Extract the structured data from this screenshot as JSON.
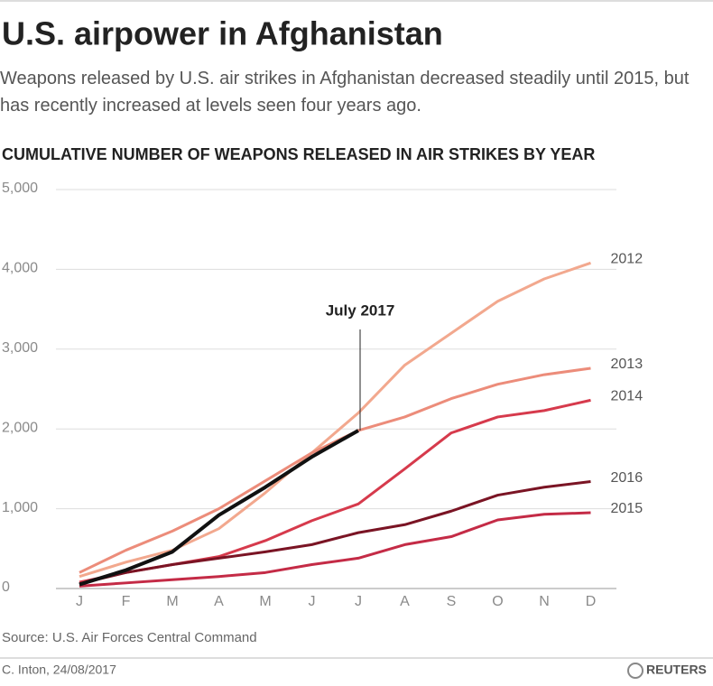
{
  "chart_data": {
    "type": "line",
    "title": "U.S. airpower in Afghanistan",
    "subtitle": "Weapons released by U.S. air strikes in Afghanistan decreased steadily until 2015, but has recently increased at levels seen four years ago.",
    "chart_title": "CUMULATIVE NUMBER OF WEAPONS RELEASED IN AIR STRIKES BY YEAR",
    "annotation": "July 2017",
    "source": "Source: U.S. Air Forces Central Command",
    "credit": "C. Inton, 24/08/2017",
    "logo": "REUTERS",
    "categories": [
      "J",
      "F",
      "M",
      "A",
      "M",
      "J",
      "J",
      "A",
      "S",
      "O",
      "N",
      "D"
    ],
    "ylim": [
      0,
      5000
    ],
    "yticks": [
      0,
      {
        "value": 1000,
        "label": "1,000"
      },
      {
        "value": 2000,
        "label": "2,000"
      },
      {
        "value": 3000,
        "label": "3,000"
      },
      {
        "value": 4000,
        "label": "4,000"
      },
      {
        "value": 5000,
        "label": "5,000"
      }
    ],
    "grid": true,
    "series": [
      {
        "name": "2012",
        "color": "#f2a88e",
        "values": [
          150,
          330,
          480,
          750,
          1200,
          1700,
          2200,
          2800,
          3200,
          3600,
          3880,
          4080
        ]
      },
      {
        "name": "2013",
        "color": "#ec8c7a",
        "values": [
          200,
          480,
          720,
          1000,
          1350,
          1700,
          1980,
          2150,
          2380,
          2560,
          2680,
          2760
        ]
      },
      {
        "name": "2014",
        "color": "#d63a4c",
        "values": [
          80,
          200,
          300,
          400,
          600,
          850,
          1060,
          1500,
          1950,
          2150,
          2230,
          2360
        ]
      },
      {
        "name": "2015",
        "color": "#c42b46",
        "values": [
          30,
          70,
          110,
          150,
          200,
          300,
          380,
          550,
          650,
          860,
          930,
          950
        ]
      },
      {
        "name": "2016",
        "color": "#7a1424",
        "values": [
          60,
          200,
          300,
          380,
          460,
          550,
          700,
          800,
          970,
          1170,
          1270,
          1340
        ]
      },
      {
        "name": "2017",
        "color": "#111111",
        "values": [
          50,
          230,
          460,
          920,
          1270,
          1650,
          1980,
          null,
          null,
          null,
          null,
          null
        ]
      }
    ]
  }
}
